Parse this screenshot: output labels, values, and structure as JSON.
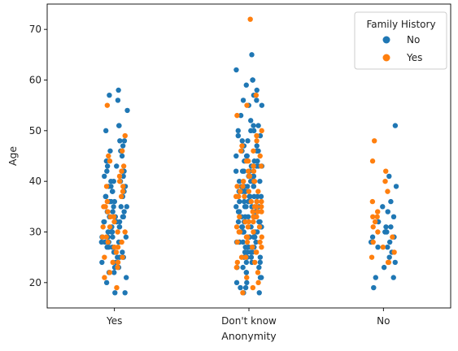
{
  "chart_data": {
    "type": "scatter",
    "subtype": "strip",
    "title": "",
    "xlabel": "Anonymity",
    "ylabel": "Age",
    "categories": [
      "Yes",
      "Don't know",
      "No"
    ],
    "yticks": [
      20,
      30,
      40,
      50,
      60,
      70
    ],
    "ylim": [
      15,
      75
    ],
    "grid": false,
    "legend": {
      "title": "Family History",
      "placement": "top-right",
      "entries": [
        {
          "label": "No",
          "color": "#1f77b4"
        },
        {
          "label": "Yes",
          "color": "#ff7f0e"
        }
      ]
    },
    "series": [
      {
        "name": "No",
        "color": "#1f77b4",
        "points": {
          "Yes": [
            58,
            57,
            56,
            54,
            51,
            51,
            50,
            48,
            48,
            47,
            46,
            46,
            45,
            44,
            43,
            43,
            42,
            42,
            42,
            41,
            41,
            40,
            40,
            40,
            39,
            39,
            39,
            38,
            38,
            38,
            37,
            37,
            37,
            36,
            36,
            36,
            35,
            35,
            35,
            34,
            34,
            34,
            33,
            33,
            33,
            33,
            32,
            32,
            32,
            32,
            31,
            31,
            31,
            30,
            30,
            30,
            30,
            29,
            29,
            29,
            29,
            28,
            28,
            28,
            28,
            27,
            27,
            27,
            26,
            26,
            26,
            25,
            25,
            25,
            24,
            24,
            24,
            23,
            23,
            22,
            22,
            21,
            20,
            18,
            18
          ],
          "Don't know": [
            65,
            62,
            60,
            60,
            59,
            58,
            57,
            56,
            56,
            55,
            55,
            53,
            52,
            51,
            51,
            50,
            50,
            50,
            49,
            49,
            48,
            48,
            47,
            47,
            46,
            46,
            46,
            45,
            45,
            45,
            44,
            44,
            44,
            43,
            43,
            43,
            43,
            42,
            42,
            42,
            42,
            41,
            41,
            41,
            41,
            40,
            40,
            40,
            40,
            40,
            39,
            39,
            39,
            39,
            39,
            38,
            38,
            38,
            38,
            38,
            37,
            37,
            37,
            37,
            37,
            36,
            36,
            36,
            36,
            36,
            35,
            35,
            35,
            35,
            35,
            34,
            34,
            34,
            34,
            34,
            33,
            33,
            33,
            33,
            33,
            32,
            32,
            32,
            32,
            32,
            31,
            31,
            31,
            31,
            31,
            30,
            30,
            30,
            30,
            30,
            29,
            29,
            29,
            29,
            29,
            28,
            28,
            28,
            28,
            28,
            27,
            27,
            27,
            27,
            26,
            26,
            26,
            26,
            25,
            25,
            25,
            25,
            24,
            24,
            24,
            23,
            23,
            23,
            22,
            22,
            21,
            21,
            20,
            20,
            19,
            19,
            18,
            18
          ],
          "No": [
            51,
            41,
            39,
            36,
            35,
            34,
            33,
            32,
            31,
            31,
            30,
            30,
            29,
            29,
            28,
            28,
            27,
            27,
            26,
            25,
            24,
            23,
            21,
            21,
            19
          ]
        }
      },
      {
        "name": "Yes",
        "color": "#ff7f0e",
        "points": {
          "Yes": [
            55,
            49,
            46,
            45,
            44,
            43,
            42,
            41,
            40,
            39,
            39,
            38,
            37,
            36,
            35,
            35,
            34,
            33,
            33,
            32,
            31,
            31,
            30,
            30,
            29,
            29,
            28,
            28,
            27,
            27,
            26,
            25,
            25,
            24,
            24,
            23,
            22,
            21,
            19
          ],
          "Don't know": [
            72,
            57,
            55,
            53,
            50,
            49,
            48,
            47,
            46,
            46,
            45,
            44,
            44,
            43,
            43,
            42,
            42,
            41,
            41,
            40,
            40,
            40,
            39,
            39,
            38,
            38,
            38,
            37,
            37,
            37,
            36,
            36,
            36,
            35,
            35,
            35,
            34,
            34,
            34,
            33,
            33,
            33,
            32,
            32,
            32,
            31,
            31,
            31,
            30,
            30,
            30,
            29,
            29,
            29,
            28,
            28,
            28,
            27,
            27,
            26,
            26,
            25,
            25,
            24,
            24,
            23,
            22,
            21,
            20,
            19,
            18
          ],
          "No": [
            48,
            44,
            42,
            40,
            38,
            36,
            34,
            33,
            33,
            32,
            31,
            30,
            29,
            28,
            27,
            26,
            25,
            24,
            24
          ]
        }
      }
    ]
  }
}
